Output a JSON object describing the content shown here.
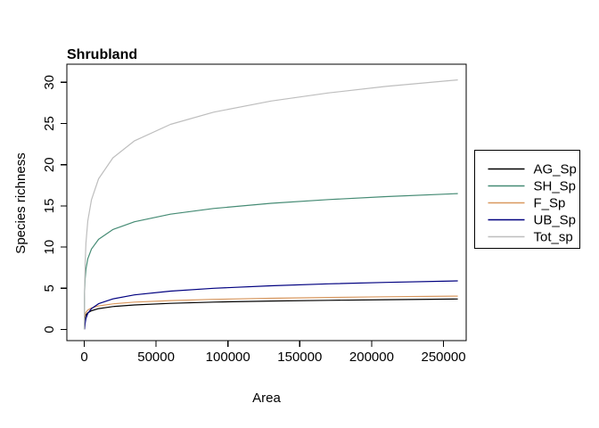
{
  "chart_data": {
    "type": "line",
    "title": "Shrubland",
    "xlabel": "Area",
    "ylabel": "Species richness",
    "grid": false,
    "legend_position": "right-outside",
    "background_color": "#ffffff",
    "axis_color": "#000000",
    "xlim": [
      -12100,
      265800
    ],
    "ylim": [
      -1.35,
      32.2
    ],
    "x_ticks": [
      {
        "v": 0,
        "label": "0"
      },
      {
        "v": 50000,
        "label": "50000"
      },
      {
        "v": 100000,
        "label": "100000"
      },
      {
        "v": 150000,
        "label": "150000"
      },
      {
        "v": 200000,
        "label": "200000"
      },
      {
        "v": 250000,
        "label": "250000"
      }
    ],
    "y_ticks": [
      {
        "v": 0,
        "label": "0"
      },
      {
        "v": 5,
        "label": "5"
      },
      {
        "v": 10,
        "label": "10"
      },
      {
        "v": 15,
        "label": "15"
      },
      {
        "v": 20,
        "label": "20"
      },
      {
        "v": 25,
        "label": "25"
      },
      {
        "v": 30,
        "label": "30"
      }
    ],
    "series": [
      {
        "name": "AG_Sp",
        "color": "#000000",
        "points": [
          [
            200,
            1.12
          ],
          [
            600,
            1.52
          ],
          [
            1200,
            1.77
          ],
          [
            2500,
            2.03
          ],
          [
            5000,
            2.28
          ],
          [
            10000,
            2.53
          ],
          [
            20000,
            2.78
          ],
          [
            35000,
            2.98
          ],
          [
            60000,
            3.17
          ],
          [
            90000,
            3.32
          ],
          [
            130000,
            3.45
          ],
          [
            170000,
            3.54
          ],
          [
            210000,
            3.62
          ],
          [
            260000,
            3.7
          ]
        ]
      },
      {
        "name": "SH_Sp",
        "color": "#458B74",
        "points": [
          [
            17,
            0
          ],
          [
            40,
            1.53
          ],
          [
            100,
            3.09
          ],
          [
            250,
            4.65
          ],
          [
            600,
            6.15
          ],
          [
            1200,
            7.33
          ],
          [
            2500,
            8.58
          ],
          [
            5000,
            9.76
          ],
          [
            10000,
            10.94
          ],
          [
            20000,
            12.13
          ],
          [
            35000,
            13.08
          ],
          [
            60000,
            14.0
          ],
          [
            90000,
            14.69
          ],
          [
            130000,
            15.32
          ],
          [
            170000,
            15.77
          ],
          [
            210000,
            16.13
          ],
          [
            260000,
            16.5
          ]
        ]
      },
      {
        "name": "F_Sp",
        "color": "#D9985F",
        "points": [
          [
            200,
            1.44
          ],
          [
            600,
            1.84
          ],
          [
            1200,
            2.09
          ],
          [
            2500,
            2.36
          ],
          [
            5000,
            2.61
          ],
          [
            10000,
            2.86
          ],
          [
            20000,
            3.11
          ],
          [
            35000,
            3.32
          ],
          [
            60000,
            3.51
          ],
          [
            90000,
            3.66
          ],
          [
            130000,
            3.79
          ],
          [
            170000,
            3.89
          ],
          [
            210000,
            3.97
          ],
          [
            260000,
            4.05
          ]
        ]
      },
      {
        "name": "UB_Sp",
        "color": "#000080",
        "points": [
          [
            255,
            0
          ],
          [
            600,
            0.73
          ],
          [
            1200,
            1.32
          ],
          [
            2500,
            1.95
          ],
          [
            5000,
            2.54
          ],
          [
            10000,
            3.13
          ],
          [
            20000,
            3.72
          ],
          [
            35000,
            4.2
          ],
          [
            60000,
            4.66
          ],
          [
            90000,
            5.0
          ],
          [
            130000,
            5.31
          ],
          [
            170000,
            5.54
          ],
          [
            210000,
            5.72
          ],
          [
            260000,
            5.9
          ]
        ]
      },
      {
        "name": "Tot_sp",
        "color": "#BEBEBE",
        "points": [
          [
            70,
            0
          ],
          [
            150,
            2.83
          ],
          [
            300,
            5.38
          ],
          [
            600,
            7.93
          ],
          [
            1200,
            10.48
          ],
          [
            2500,
            13.18
          ],
          [
            5000,
            15.74
          ],
          [
            10000,
            18.29
          ],
          [
            20000,
            20.84
          ],
          [
            35000,
            22.9
          ],
          [
            60000,
            24.89
          ],
          [
            90000,
            26.38
          ],
          [
            130000,
            27.73
          ],
          [
            170000,
            28.72
          ],
          [
            210000,
            29.5
          ],
          [
            260000,
            30.29
          ]
        ]
      }
    ]
  }
}
